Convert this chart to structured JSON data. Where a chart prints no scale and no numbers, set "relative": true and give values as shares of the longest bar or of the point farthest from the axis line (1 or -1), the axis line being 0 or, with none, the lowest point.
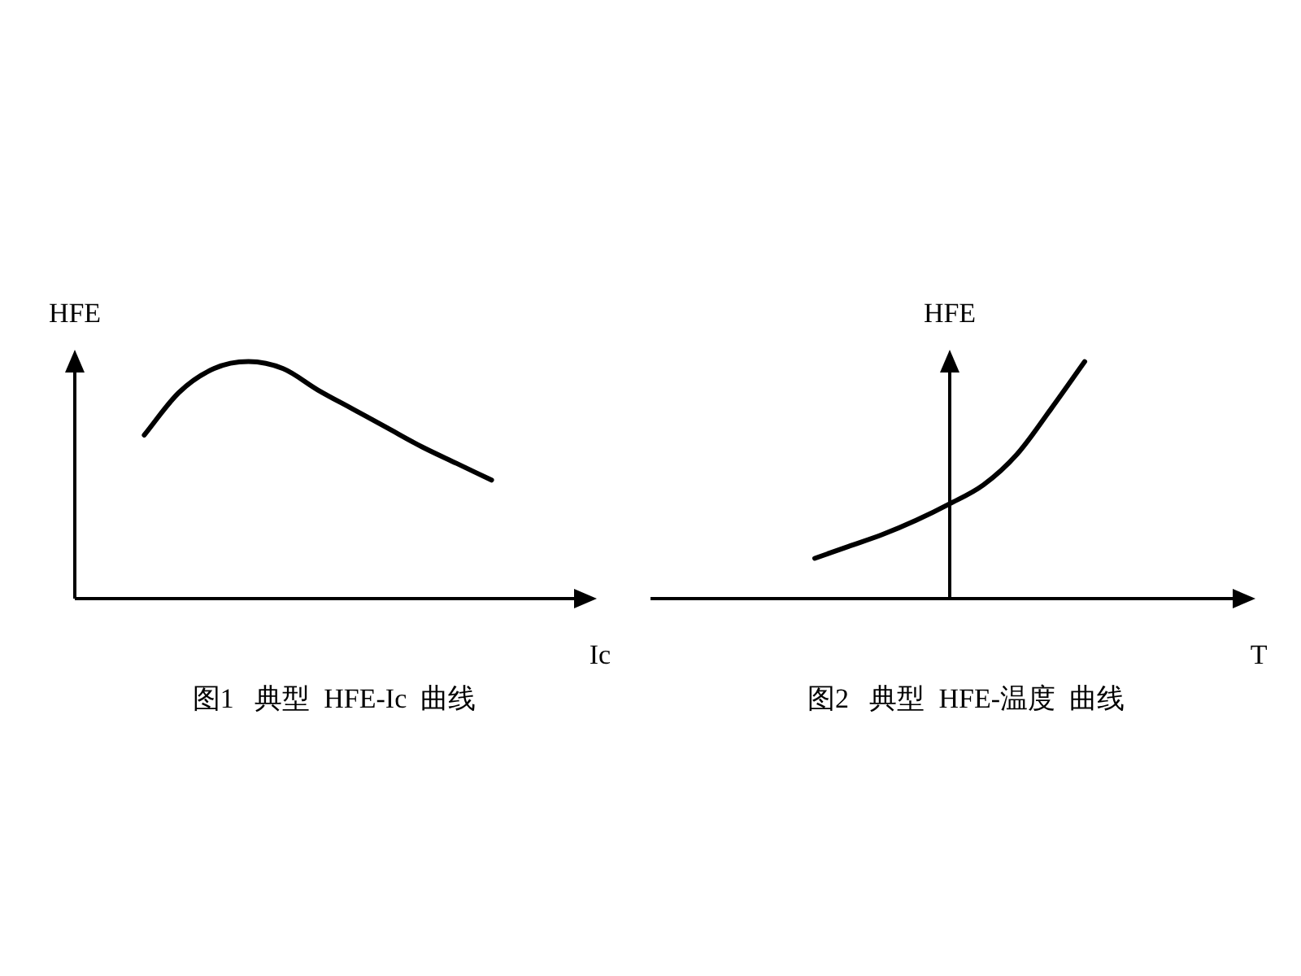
{
  "chart_data": [
    {
      "type": "line",
      "relative": true,
      "xlabel": "Ic",
      "ylabel": "HFE",
      "title": "图1   典型  HFE-Ic  曲线",
      "categories": [
        null,
        null,
        null,
        null,
        null,
        null,
        null,
        null,
        null,
        null,
        null,
        null,
        null,
        null,
        null
      ],
      "series": [
        {
          "color": "#000000",
          "values": [
            null,
            null,
            0.69,
            0.87,
            0.97,
            1,
            0.97,
            0.88,
            0.8,
            0.72,
            0.64,
            0.57,
            0.5,
            null,
            null
          ]
        }
      ]
    },
    {
      "type": "line",
      "relative": true,
      "xlabel": "T",
      "ylabel": "HFE",
      "title": "图2   典型  HFE-温度  曲线",
      "categories": [
        null,
        null,
        null,
        null,
        null,
        null,
        null,
        null,
        null,
        null,
        null,
        null,
        null,
        null,
        null,
        null,
        null
      ],
      "series": [
        {
          "color": "#000000",
          "values": [
            null,
            null,
            null,
            null,
            0.17,
            0.22,
            0.27,
            0.33,
            0.4,
            0.48,
            0.61,
            0.8,
            1,
            null,
            null,
            null,
            null
          ]
        }
      ]
    }
  ]
}
